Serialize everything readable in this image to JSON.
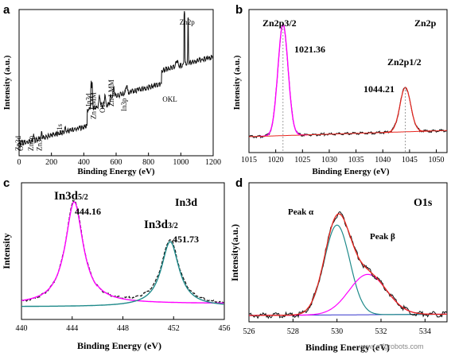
{
  "chart_data": [
    {
      "panel": "a",
      "type": "line",
      "xlabel": "Binding Energy (eV)",
      "ylabel": "Intensity (a.u.)",
      "xlim": [
        0,
        1200
      ],
      "xticks": [
        "0",
        "200",
        "400",
        "600",
        "800",
        "1000",
        "1200"
      ],
      "annotations": [
        {
          "text": "Zn3d",
          "x": 10
        },
        {
          "text": "O2s",
          "x": 24
        },
        {
          "text": "Zn3p",
          "x": 88
        },
        {
          "text": "Zn3s",
          "x": 140
        },
        {
          "text": "C1s",
          "x": 285
        },
        {
          "text": "In3d",
          "x": 445
        },
        {
          "text": "Zn LMM",
          "x": 475
        },
        {
          "text": "O1s",
          "x": 531
        },
        {
          "text": "Zn LMM",
          "x": 585
        },
        {
          "text": "In3p",
          "x": 665
        },
        {
          "text": "OKL",
          "x": 975
        },
        {
          "text": "Zn2p",
          "x": 1022
        }
      ]
    },
    {
      "panel": "b",
      "type": "line",
      "title": "Zn2p",
      "xlabel": "Binding  Energy (eV)",
      "ylabel": "Intensity (a.u.)",
      "xlim": [
        1015,
        1052
      ],
      "xticks": [
        "1015",
        "1020",
        "1025",
        "1030",
        "1035",
        "1040",
        "1045",
        "1050"
      ],
      "peaks": [
        {
          "label": "Zn2p3/2",
          "position": 1021.36,
          "value_label": "1021.36"
        },
        {
          "label": "Zn2p1/2",
          "position": 1044.21,
          "value_label": "1044.21"
        }
      ]
    },
    {
      "panel": "c",
      "type": "line",
      "title": "In3d",
      "xlabel": "Binding Energy (eV)",
      "ylabel": "Intensity",
      "xlim": [
        440,
        456
      ],
      "xticks": [
        "440",
        "444",
        "448",
        "452",
        "456"
      ],
      "peaks": [
        {
          "label_main": "In3d",
          "label_sub": "5/2",
          "position": 444.16,
          "value_label": "444.16"
        },
        {
          "label_main": "In3d",
          "label_sub": "3/2",
          "position": 451.73,
          "value_label": "451.73"
        }
      ]
    },
    {
      "panel": "d",
      "type": "line",
      "title": "O1s",
      "xlabel": "Binding Energy (eV)",
      "ylabel": "Intensity(a.u.)",
      "xlim": [
        526,
        535
      ],
      "xticks": [
        "526",
        "528",
        "530",
        "532",
        "534"
      ],
      "peaks": [
        {
          "label": "Peak α",
          "position": 530.0
        },
        {
          "label": "Peak β",
          "position": 531.4
        }
      ]
    }
  ],
  "watermark": "www.mfgrobots.com",
  "colors": {
    "magenta": "#ff00ff",
    "teal": "#1f8a8a",
    "red": "#e8261f",
    "black": "#000000",
    "blue": "#3333cc"
  }
}
